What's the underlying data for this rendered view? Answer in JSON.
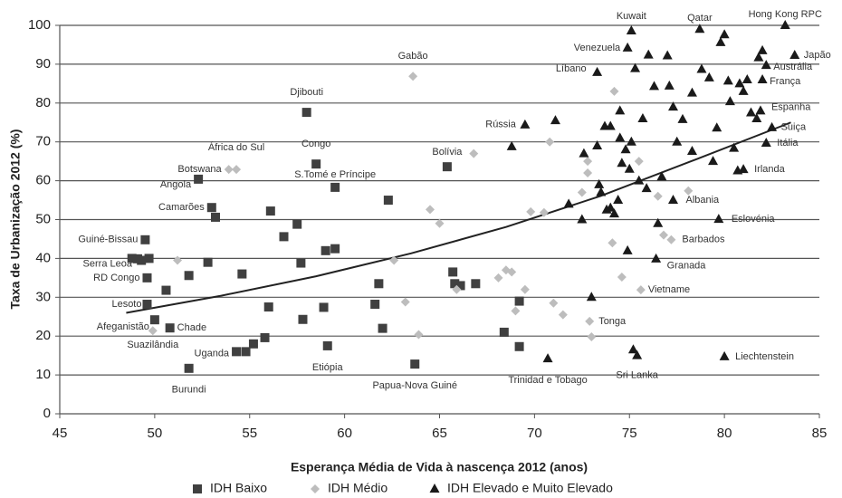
{
  "chart_data": {
    "type": "scatter",
    "x_label": "Esperança Média de Vida à nascença 2012 (anos)",
    "y_label": "Taxa de Urbanização 2012 (%)",
    "xlim": [
      45,
      85
    ],
    "xticks": [
      45,
      50,
      55,
      60,
      65,
      70,
      75,
      80,
      85
    ],
    "ylim": [
      0,
      100
    ],
    "yticks": [
      0,
      10,
      20,
      30,
      40,
      50,
      60,
      70,
      80,
      90,
      100
    ],
    "grid": true,
    "legend": "bottom",
    "trendline": {
      "x": [
        48.5,
        53.5,
        58.5,
        63.5,
        68.5,
        73.5,
        78.5,
        83.5
      ],
      "y": [
        26,
        30.4,
        35.4,
        41.3,
        48.1,
        56.1,
        65.5,
        75
      ]
    },
    "series": [
      {
        "name": "IDH Baixo",
        "color": "#404040",
        "marker": "square",
        "x": [
          58,
          58.5,
          59.5,
          52.3,
          53,
          49.5,
          49.1,
          49.6,
          49.6,
          50,
          50.8,
          54.3,
          51.8,
          59.1,
          63.7,
          65.4,
          53.2,
          48.8,
          49.3,
          49.7,
          50.6,
          51.8,
          52.8,
          54.6,
          54.8,
          55.2,
          55.8,
          56,
          56.1,
          56.8,
          57.5,
          57.7,
          57.8,
          58.9,
          59,
          59.5,
          61.6,
          61.8,
          62,
          62.3,
          65.7,
          65.8,
          66.1,
          66.9,
          68.4,
          69.2,
          69.2
        ],
        "y": [
          77.6,
          64.3,
          58.3,
          60.4,
          53.1,
          44.8,
          39.9,
          35,
          28.2,
          24.2,
          22.1,
          16,
          11.7,
          17.5,
          12.8,
          63.6,
          50.6,
          40,
          39.5,
          40,
          31.8,
          35.6,
          39,
          36,
          16,
          18,
          19.6,
          27.5,
          52.2,
          45.6,
          48.8,
          38.8,
          24.3,
          27.4,
          42,
          42.5,
          28.2,
          33.5,
          22,
          55,
          36.5,
          33.5,
          33,
          33.5,
          21,
          29,
          17.3
        ],
        "labels": [
          "Djibouti",
          "Congo",
          "S.Tomé e Príncipe",
          "Angola",
          "Camarões",
          "Guiné-Bissau",
          "Serra Leoa",
          "RD Congo",
          "Lesoto",
          "Afeganistão",
          "Chade",
          "Uganda",
          "Burundi",
          "Etiópia",
          "Papua-Nova Guiné",
          "Bolívia",
          null,
          null,
          null,
          null,
          null,
          null,
          null,
          null,
          null,
          null,
          null,
          null,
          null,
          null,
          null,
          null,
          null,
          null,
          null,
          null,
          null,
          null,
          null,
          null,
          null,
          null,
          null,
          null,
          null,
          null,
          null
        ]
      },
      {
        "name": "IDH Médio",
        "color": "#bdbdbd",
        "marker": "diamond",
        "x": [
          53.9,
          54.3,
          63.6,
          49.9,
          75.6,
          72.9,
          77.2,
          51.2,
          62.6,
          63.2,
          63.9,
          64.5,
          65,
          65.9,
          66.8,
          68.1,
          68.5,
          68.8,
          69,
          69.5,
          69.8,
          70.5,
          70.8,
          71,
          71.5,
          72.5,
          72.8,
          72.8,
          73,
          74.1,
          74.2,
          74.6,
          75.5,
          76.5,
          76.8,
          78.1
        ],
        "y": [
          62.9,
          62.9,
          86.9,
          21.4,
          31.9,
          23.8,
          44.8,
          39.5,
          39.5,
          28.8,
          20.4,
          52.6,
          49,
          32,
          67,
          35,
          37,
          36.5,
          26.5,
          32,
          52,
          51.8,
          70,
          28.5,
          25.5,
          57,
          62,
          65,
          19.8,
          44,
          83,
          35.2,
          65,
          56,
          46,
          57.4
        ],
        "labels": [
          "Botswana",
          "África do Sul",
          "Gabão",
          "Suazilândia",
          "Vietname",
          "Tonga",
          "Barbados",
          null,
          null,
          null,
          null,
          null,
          null,
          null,
          null,
          null,
          null,
          null,
          null,
          null,
          null,
          null,
          null,
          null,
          null,
          null,
          null,
          null,
          null,
          null,
          null,
          null,
          null,
          null,
          null,
          null
        ]
      },
      {
        "name": "IDH Elevado e Muito Elevado",
        "color": "#1a1a1a",
        "marker": "triangle",
        "x": [
          76.4,
          70.7,
          75.4,
          80,
          77.3,
          79.7,
          81,
          82.2,
          82.5,
          81.9,
          82,
          82.2,
          83.7,
          83.2,
          78.7,
          75.1,
          74.9,
          73.3,
          69.5,
          68.8,
          71.1,
          71.8,
          72.5,
          72.6,
          73,
          73.3,
          73.4,
          73.5,
          73.7,
          73.8,
          74,
          74,
          74.2,
          74.4,
          74.5,
          74.5,
          74.6,
          74.8,
          74.9,
          75,
          75.1,
          75.3,
          75.5,
          75.7,
          75.9,
          76,
          76.3,
          76.5,
          76.7,
          77,
          77.1,
          77.3,
          77.5,
          77.8,
          78.3,
          78.3,
          78.8,
          79.2,
          79.4,
          79.6,
          79.8,
          80,
          80.2,
          80.3,
          80.5,
          80.7,
          80.8,
          81,
          81.2,
          81.4,
          81.7,
          81.8,
          82,
          75.2
        ],
        "y": [
          39.9,
          14.2,
          15,
          14.7,
          55,
          50.1,
          62.9,
          69.7,
          73.7,
          78,
          86,
          89.7,
          92.3,
          100,
          99,
          98.6,
          94.2,
          87.9,
          74.4,
          68.8,
          75.5,
          54,
          50,
          67,
          30,
          69,
          59,
          57,
          74,
          52.5,
          74,
          53,
          51.5,
          55,
          78,
          71,
          64.5,
          68,
          42,
          63,
          70,
          88.9,
          60,
          76,
          58,
          92.4,
          84.3,
          49,
          61,
          92.2,
          84.4,
          79,
          70,
          75.8,
          82.6,
          67.6,
          88.7,
          86.5,
          65,
          73.6,
          95.6,
          97.6,
          85.7,
          80.4,
          68.4,
          62.6,
          85,
          83,
          86,
          77.5,
          76,
          91.7,
          93.5,
          16.5
        ],
        "labels": [
          "Granada",
          "Trinidad e Tobago",
          "Sri Lanka",
          "Liechtenstein",
          "Albania",
          "Eslovénia",
          "Irlanda",
          "Itália",
          "Suiça",
          "Espanha",
          "França",
          "Austrália",
          "Japão",
          "Hong Kong RPC",
          "Qatar",
          "Kuwait",
          "Venezuela",
          "Líbano",
          "Rússia",
          null,
          null,
          null,
          null,
          null,
          null,
          null,
          null,
          null,
          null,
          null,
          null,
          null,
          null,
          null,
          null,
          null,
          null,
          null,
          null,
          null,
          null,
          null,
          null,
          null,
          null,
          null,
          null,
          null,
          null,
          null,
          null,
          null,
          null,
          null,
          null,
          null,
          null,
          null,
          null,
          null,
          null,
          null,
          null,
          null,
          null,
          null,
          null,
          null,
          null
        ]
      }
    ]
  }
}
